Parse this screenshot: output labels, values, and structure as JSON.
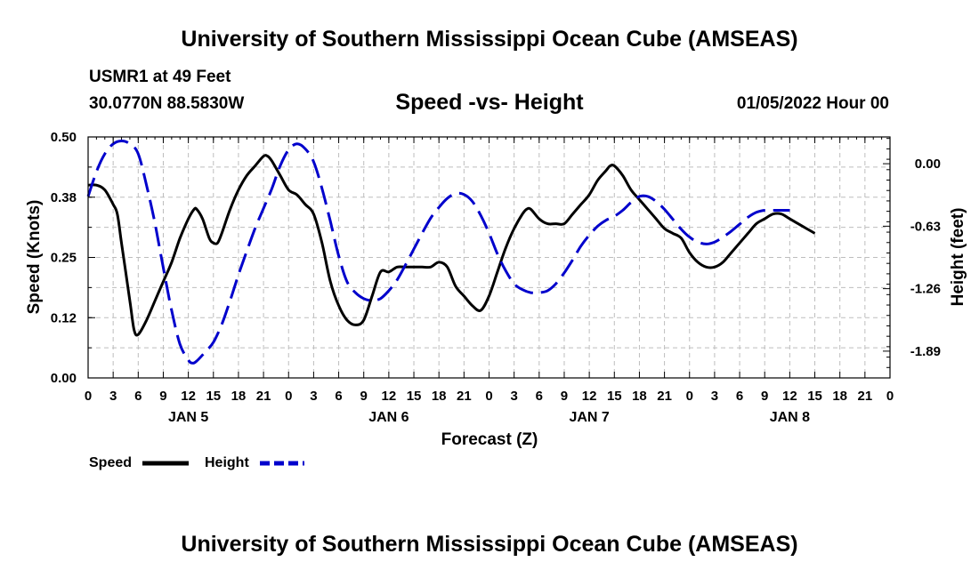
{
  "header": {
    "title": "University of Southern Mississippi Ocean Cube (AMSEAS)",
    "station": "USMR1 at 49 Feet",
    "coords": "30.0770N  88.5830W",
    "subtitle": "Speed -vs- Height",
    "date": "01/05/2022 Hour 00"
  },
  "footer": {
    "title": "University of Southern Mississippi Ocean Cube (AMSEAS)"
  },
  "chart_data": {
    "type": "line",
    "title": "Speed -vs- Height",
    "xlabel": "Forecast (Z)",
    "ylabel": "Speed (Knots)",
    "y2label": "Height (feet)",
    "xlim": [
      0,
      96
    ],
    "ylim": [
      0,
      0.5
    ],
    "y2lim": [
      -2.16,
      0.27
    ],
    "grid": true,
    "x_ticks": [
      0,
      3,
      6,
      9,
      12,
      15,
      18,
      21,
      24,
      27,
      30,
      33,
      36,
      39,
      42,
      45,
      48,
      51,
      54,
      57,
      60,
      63,
      66,
      69,
      72,
      75,
      78,
      81,
      84,
      87,
      90,
      93,
      96
    ],
    "x_tick_labels": [
      "0",
      "3",
      "6",
      "9",
      "12",
      "15",
      "18",
      "21",
      "0",
      "3",
      "6",
      "9",
      "12",
      "15",
      "18",
      "21",
      "0",
      "3",
      "6",
      "9",
      "12",
      "15",
      "18",
      "21",
      "0",
      "3",
      "6",
      "9",
      "12",
      "15",
      "18",
      "21",
      "0"
    ],
    "day_labels": [
      {
        "x": 12,
        "label": "JAN 5"
      },
      {
        "x": 36,
        "label": "JAN 6"
      },
      {
        "x": 60,
        "label": "JAN 7"
      },
      {
        "x": 84,
        "label": "JAN 8"
      }
    ],
    "y_ticks": [
      0,
      0.125,
      0.25,
      0.375,
      0.5
    ],
    "y_tick_labels": [
      "0.00",
      "0.12",
      "0.25",
      "0.38",
      "0.50"
    ],
    "y2_ticks": [
      0.0,
      -0.63,
      -1.26,
      -1.89
    ],
    "y2_tick_labels": [
      "0.00",
      "-0.63",
      "-1.26",
      "-1.89"
    ],
    "legend": {
      "position": "bottom-left",
      "speed_label": "Speed",
      "height_label": "Height"
    },
    "series": [
      {
        "name": "Speed",
        "axis": "left",
        "color": "#000000",
        "dash": "solid",
        "points": [
          [
            0,
            0.4
          ],
          [
            1,
            0.4
          ],
          [
            2,
            0.39
          ],
          [
            3,
            0.36
          ],
          [
            3.5,
            0.34
          ],
          [
            4,
            0.28
          ],
          [
            5,
            0.16
          ],
          [
            5.5,
            0.1
          ],
          [
            6,
            0.09
          ],
          [
            7,
            0.12
          ],
          [
            8,
            0.16
          ],
          [
            9,
            0.2
          ],
          [
            10,
            0.24
          ],
          [
            11,
            0.29
          ],
          [
            12,
            0.33
          ],
          [
            12.7,
            0.35
          ],
          [
            13,
            0.35
          ],
          [
            13.7,
            0.33
          ],
          [
            14.5,
            0.29
          ],
          [
            15,
            0.28
          ],
          [
            15.5,
            0.28
          ],
          [
            16,
            0.3
          ],
          [
            17,
            0.35
          ],
          [
            18,
            0.39
          ],
          [
            19,
            0.42
          ],
          [
            20,
            0.44
          ],
          [
            21,
            0.46
          ],
          [
            21.5,
            0.46
          ],
          [
            22,
            0.45
          ],
          [
            23,
            0.42
          ],
          [
            24,
            0.39
          ],
          [
            25,
            0.38
          ],
          [
            26,
            0.36
          ],
          [
            27,
            0.34
          ],
          [
            28,
            0.28
          ],
          [
            29,
            0.2
          ],
          [
            30,
            0.15
          ],
          [
            31,
            0.12
          ],
          [
            32,
            0.11
          ],
          [
            33,
            0.12
          ],
          [
            34,
            0.17
          ],
          [
            35,
            0.22
          ],
          [
            36,
            0.22
          ],
          [
            37,
            0.23
          ],
          [
            38,
            0.23
          ],
          [
            39,
            0.23
          ],
          [
            40,
            0.23
          ],
          [
            41,
            0.23
          ],
          [
            42,
            0.24
          ],
          [
            43,
            0.23
          ],
          [
            44,
            0.19
          ],
          [
            45,
            0.17
          ],
          [
            46,
            0.15
          ],
          [
            47,
            0.14
          ],
          [
            48,
            0.17
          ],
          [
            49,
            0.22
          ],
          [
            50,
            0.27
          ],
          [
            51,
            0.31
          ],
          [
            52,
            0.34
          ],
          [
            52.5,
            0.35
          ],
          [
            53,
            0.35
          ],
          [
            54,
            0.33
          ],
          [
            55,
            0.32
          ],
          [
            56,
            0.32
          ],
          [
            57,
            0.32
          ],
          [
            58,
            0.34
          ],
          [
            59,
            0.36
          ],
          [
            60,
            0.38
          ],
          [
            61,
            0.41
          ],
          [
            62,
            0.43
          ],
          [
            62.5,
            0.44
          ],
          [
            63,
            0.44
          ],
          [
            64,
            0.42
          ],
          [
            65,
            0.39
          ],
          [
            66,
            0.37
          ],
          [
            67,
            0.35
          ],
          [
            68,
            0.33
          ],
          [
            69,
            0.31
          ],
          [
            70,
            0.3
          ],
          [
            71,
            0.29
          ],
          [
            72,
            0.26
          ],
          [
            73,
            0.24
          ],
          [
            74,
            0.23
          ],
          [
            75,
            0.23
          ],
          [
            76,
            0.24
          ],
          [
            77,
            0.26
          ],
          [
            78,
            0.28
          ],
          [
            79,
            0.3
          ],
          [
            80,
            0.32
          ],
          [
            81,
            0.33
          ],
          [
            82,
            0.34
          ],
          [
            83,
            0.34
          ],
          [
            84,
            0.33
          ],
          [
            85,
            0.32
          ],
          [
            86,
            0.31
          ],
          [
            87,
            0.3
          ]
        ]
      },
      {
        "name": "Height",
        "axis": "right",
        "color": "#0000cc",
        "dash": "dashed",
        "points": [
          [
            0,
            -0.33
          ],
          [
            1,
            -0.08
          ],
          [
            2,
            0.1
          ],
          [
            3,
            0.2
          ],
          [
            4,
            0.23
          ],
          [
            5,
            0.2
          ],
          [
            6,
            0.1
          ],
          [
            7,
            -0.22
          ],
          [
            8,
            -0.6
          ],
          [
            9,
            -1.05
          ],
          [
            10,
            -1.48
          ],
          [
            11,
            -1.82
          ],
          [
            12,
            -1.98
          ],
          [
            12.5,
            -2.01
          ],
          [
            13,
            -1.99
          ],
          [
            14,
            -1.9
          ],
          [
            15,
            -1.8
          ],
          [
            16,
            -1.62
          ],
          [
            17,
            -1.38
          ],
          [
            18,
            -1.12
          ],
          [
            19,
            -0.88
          ],
          [
            20,
            -0.65
          ],
          [
            21,
            -0.45
          ],
          [
            22,
            -0.25
          ],
          [
            23,
            -0.02
          ],
          [
            24,
            0.14
          ],
          [
            25,
            0.2
          ],
          [
            26,
            0.15
          ],
          [
            27,
            0.02
          ],
          [
            28,
            -0.25
          ],
          [
            29,
            -0.58
          ],
          [
            30,
            -0.93
          ],
          [
            31,
            -1.19
          ],
          [
            32,
            -1.3
          ],
          [
            33,
            -1.36
          ],
          [
            34,
            -1.38
          ],
          [
            35,
            -1.36
          ],
          [
            36,
            -1.28
          ],
          [
            37,
            -1.17
          ],
          [
            38,
            -1.02
          ],
          [
            39,
            -0.86
          ],
          [
            40,
            -0.7
          ],
          [
            41,
            -0.55
          ],
          [
            42,
            -0.44
          ],
          [
            43,
            -0.35
          ],
          [
            44,
            -0.3
          ],
          [
            45,
            -0.31
          ],
          [
            46,
            -0.38
          ],
          [
            47,
            -0.52
          ],
          [
            48,
            -0.7
          ],
          [
            49,
            -0.91
          ],
          [
            50,
            -1.08
          ],
          [
            51,
            -1.21
          ],
          [
            52,
            -1.27
          ],
          [
            53,
            -1.3
          ],
          [
            54,
            -1.3
          ],
          [
            55,
            -1.28
          ],
          [
            56,
            -1.21
          ],
          [
            57,
            -1.1
          ],
          [
            58,
            -0.97
          ],
          [
            59,
            -0.83
          ],
          [
            60,
            -0.72
          ],
          [
            61,
            -0.63
          ],
          [
            62,
            -0.57
          ],
          [
            63,
            -0.53
          ],
          [
            64,
            -0.47
          ],
          [
            65,
            -0.39
          ],
          [
            66,
            -0.33
          ],
          [
            67,
            -0.33
          ],
          [
            68,
            -0.38
          ],
          [
            69,
            -0.46
          ],
          [
            70,
            -0.56
          ],
          [
            71,
            -0.66
          ],
          [
            72,
            -0.74
          ],
          [
            73,
            -0.79
          ],
          [
            74,
            -0.81
          ],
          [
            75,
            -0.79
          ],
          [
            76,
            -0.74
          ],
          [
            77,
            -0.68
          ],
          [
            78,
            -0.61
          ],
          [
            79,
            -0.54
          ],
          [
            80,
            -0.49
          ],
          [
            81,
            -0.47
          ],
          [
            82,
            -0.47
          ],
          [
            83,
            -0.47
          ],
          [
            84,
            -0.47
          ]
        ]
      }
    ]
  }
}
